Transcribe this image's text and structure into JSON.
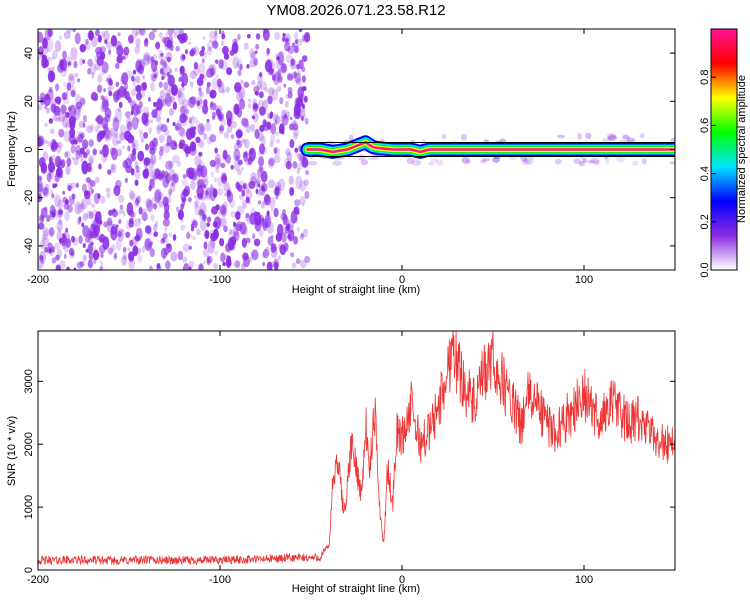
{
  "chart_data": [
    {
      "type": "heatmap",
      "panel": "spectrogram",
      "title": "YM08.2026.071.23.58.R12",
      "xlabel": "Height of straight line (km)",
      "ylabel": "Frequency (Hz)",
      "xlim": [
        -200,
        150
      ],
      "ylim": [
        -50,
        50
      ],
      "xticks": [
        -200,
        -100,
        0,
        100
      ],
      "xtick_labels": [
        "-200",
        "-100",
        "0",
        "100"
      ],
      "yticks": [
        -40,
        -20,
        0,
        20,
        40
      ],
      "ytick_labels": [
        "-40",
        "-20",
        "0",
        "20",
        "40"
      ],
      "noise_region_x": [
        -200,
        -52
      ],
      "noise_color": "#8a2be2",
      "signal_ridge": [
        {
          "x": -52,
          "y": 0
        },
        {
          "x": -45,
          "y": 0
        },
        {
          "x": -38,
          "y": -1
        },
        {
          "x": -30,
          "y": 0
        },
        {
          "x": -25,
          "y": 1.5
        },
        {
          "x": -20,
          "y": 3
        },
        {
          "x": -16,
          "y": 1
        },
        {
          "x": -12,
          "y": 0.5
        },
        {
          "x": -5,
          "y": 0
        },
        {
          "x": 5,
          "y": 0
        },
        {
          "x": 10,
          "y": -1
        },
        {
          "x": 15,
          "y": 0
        },
        {
          "x": 40,
          "y": 0
        },
        {
          "x": 80,
          "y": 0
        },
        {
          "x": 120,
          "y": 0
        },
        {
          "x": 150,
          "y": 0
        }
      ],
      "colorbar": {
        "label": "Normalized spectral amplitude",
        "range": [
          0,
          1
        ],
        "ticks": [
          0.0,
          0.2,
          0.4,
          0.6,
          0.8
        ],
        "tick_labels": [
          "0.0",
          "0.2",
          "0.4",
          "0.6",
          "0.8"
        ],
        "colors": [
          "#ffffff",
          "#8a2be2",
          "#0000ff",
          "#00e5ff",
          "#00ff00",
          "#ffff00",
          "#ff0000",
          "#ff1493"
        ]
      }
    },
    {
      "type": "line",
      "panel": "snr",
      "xlabel": "Height of straight line (km)",
      "ylabel": "SNR (10 * v/v)",
      "xlim": [
        -200,
        150
      ],
      "ylim": [
        0,
        3800
      ],
      "xticks": [
        -200,
        -100,
        0,
        100
      ],
      "xtick_labels": [
        "-200",
        "-100",
        "0",
        "100"
      ],
      "yticks": [
        0,
        1000,
        2000,
        3000
      ],
      "ytick_labels": [
        "0",
        "1000",
        "2000",
        "3000"
      ],
      "line_color": "#ee3333",
      "series": [
        {
          "name": "SNR",
          "x": [
            -200,
            -180,
            -160,
            -140,
            -120,
            -100,
            -80,
            -60,
            -45,
            -40,
            -38,
            -35,
            -32,
            -30,
            -28,
            -25,
            -22,
            -20,
            -18,
            -15,
            -12,
            -10,
            -8,
            -5,
            -3,
            0,
            5,
            10,
            15,
            20,
            25,
            28,
            30,
            35,
            40,
            45,
            50,
            55,
            60,
            65,
            70,
            75,
            80,
            85,
            90,
            95,
            100,
            105,
            110,
            115,
            120,
            125,
            130,
            135,
            140,
            145,
            150
          ],
          "y": [
            150,
            160,
            150,
            160,
            150,
            160,
            170,
            190,
            200,
            400,
            1400,
            1700,
            900,
            1300,
            2000,
            1600,
            1200,
            2400,
            1500,
            2500,
            900,
            400,
            1600,
            1100,
            2200,
            2100,
            2600,
            2000,
            2200,
            2600,
            3100,
            3700,
            3300,
            2900,
            2600,
            3100,
            3300,
            3000,
            2700,
            2300,
            2800,
            2600,
            2300,
            2200,
            2400,
            2600,
            2800,
            2500,
            2400,
            2700,
            2500,
            2300,
            2400,
            2200,
            2100,
            2000,
            2050
          ]
        }
      ]
    }
  ]
}
